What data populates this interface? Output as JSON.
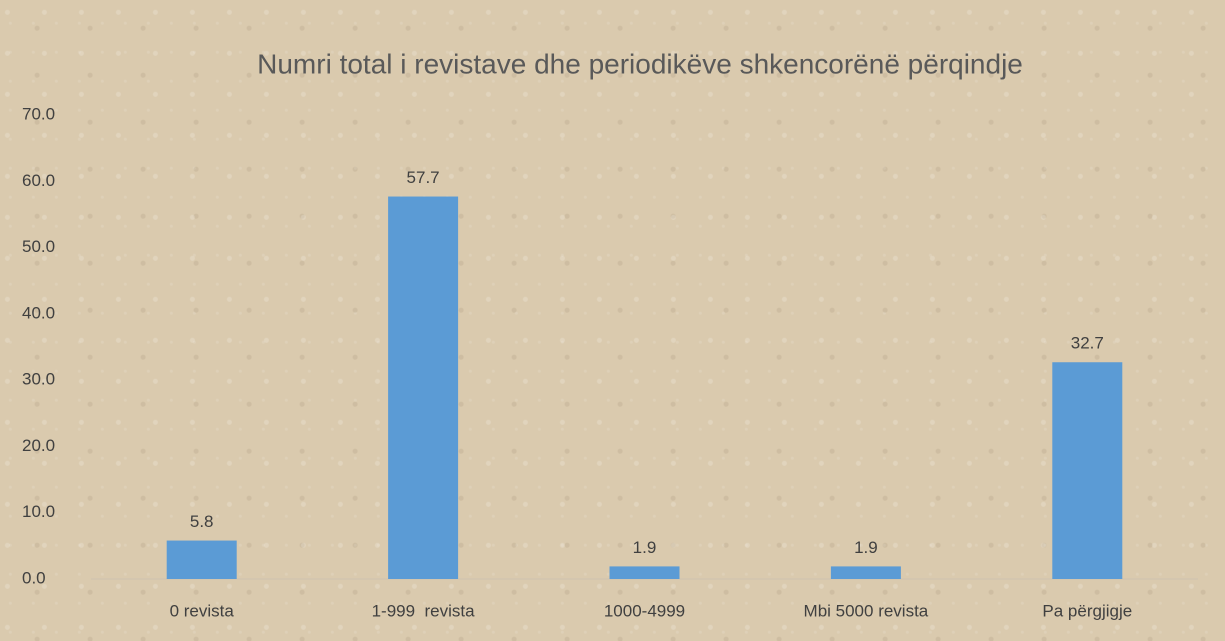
{
  "chart_data": {
    "type": "bar",
    "title": "Numri total i revistave dhe periodikëve shkencorënë përqindje",
    "categories": [
      "0 revista",
      "1-999  revista",
      "1000-4999",
      "Mbi 5000 revista",
      "Pa përgjigje"
    ],
    "values": [
      5.8,
      57.7,
      1.9,
      1.9,
      32.7
    ],
    "color": "#5b9bd5",
    "ylim": [
      0,
      70
    ],
    "yticks": [
      {
        "value": 0,
        "label": "0.0"
      },
      {
        "value": 10,
        "label": "10.0"
      },
      {
        "value": 20,
        "label": "20.0"
      },
      {
        "value": 30,
        "label": "30.0"
      },
      {
        "value": 40,
        "label": "40.0"
      },
      {
        "value": 50,
        "label": "50.0"
      },
      {
        "value": 60,
        "label": "60.0"
      },
      {
        "value": 70,
        "label": "70.0"
      }
    ],
    "grid": false
  }
}
